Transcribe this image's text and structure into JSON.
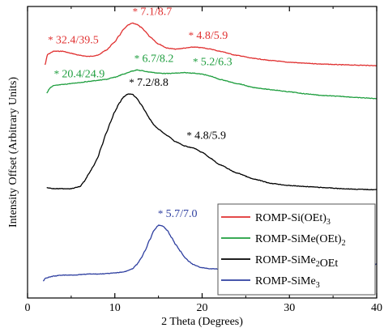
{
  "chart_data": {
    "type": "line",
    "xlabel": "2 Theta (Degrees)",
    "ylabel": "Intensity Offset (Arbitrary Units)",
    "xlim": [
      0,
      40
    ],
    "xticks": [
      "0",
      "10",
      "20",
      "30",
      "40"
    ],
    "y_tick_labels": false,
    "grid": false,
    "legend_position": "bottom-right",
    "series": [
      {
        "name": "ROMP-Si(OEt)₃",
        "color": "#e03030",
        "x": [
          2.0,
          2.3,
          3.0,
          4.0,
          5.0,
          6.0,
          7.0,
          8.0,
          9.0,
          10.0,
          10.5,
          11.0,
          11.5,
          12.0,
          12.5,
          13.0,
          13.5,
          14.0,
          15.0,
          16.0,
          17.0,
          18.0,
          19.0,
          20.0,
          21.0,
          22.0,
          24.0,
          26.0,
          28.0,
          30.0,
          32.0,
          34.0,
          36.0,
          38.0,
          40.0
        ],
        "y": [
          0.17,
          0.22,
          0.235,
          0.235,
          0.225,
          0.215,
          0.21,
          0.215,
          0.24,
          0.28,
          0.31,
          0.34,
          0.36,
          0.37,
          0.365,
          0.35,
          0.33,
          0.305,
          0.27,
          0.25,
          0.245,
          0.25,
          0.255,
          0.252,
          0.245,
          0.235,
          0.215,
          0.2,
          0.19,
          0.182,
          0.177,
          0.173,
          0.17,
          0.168,
          0.166
        ],
        "annotations": [
          {
            "label": "32.4/39.5",
            "x": 2.7,
            "y": 0.235
          },
          {
            "label": "7.1/8.7",
            "x": 12.4,
            "y": 0.37
          },
          {
            "label": "4.8/5.9",
            "x": 18.8,
            "y": 0.255
          }
        ]
      },
      {
        "name": "ROMP-SiMe(OEt)₂",
        "color": "#1e9e3e",
        "x": [
          2.2,
          2.6,
          3.0,
          4.0,
          5.0,
          6.0,
          7.0,
          8.0,
          9.0,
          10.0,
          11.0,
          12.0,
          12.5,
          13.0,
          14.0,
          15.0,
          16.0,
          17.0,
          18.0,
          19.0,
          20.0,
          21.0,
          22.0,
          24.0,
          26.0,
          28.0,
          30.0,
          32.0,
          34.0,
          36.0,
          38.0,
          40.0
        ],
        "y": [
          0.035,
          0.06,
          0.07,
          0.075,
          0.08,
          0.085,
          0.09,
          0.095,
          0.1,
          0.11,
          0.125,
          0.14,
          0.145,
          0.142,
          0.135,
          0.13,
          0.128,
          0.13,
          0.132,
          0.13,
          0.125,
          0.115,
          0.1,
          0.08,
          0.06,
          0.05,
          0.04,
          0.03,
          0.022,
          0.018,
          0.012,
          0.008
        ],
        "annotations": [
          {
            "label": "20.4/24.9",
            "x": 3.4,
            "y": 0.07
          },
          {
            "label": "6.7/8.2",
            "x": 12.6,
            "y": 0.145
          },
          {
            "label": "5.2/6.3",
            "x": 19.3,
            "y": 0.13
          }
        ]
      },
      {
        "name": "ROMP-SiMe₂OEt",
        "color": "#000000",
        "x": [
          2.2,
          3.0,
          4.0,
          5.0,
          6.0,
          6.5,
          7.0,
          7.5,
          8.0,
          8.5,
          9.0,
          9.5,
          10.0,
          10.5,
          11.0,
          11.5,
          12.0,
          12.5,
          13.0,
          13.5,
          14.0,
          14.5,
          15.0,
          16.0,
          17.0,
          18.0,
          18.5,
          19.0,
          20.0,
          21.0,
          22.0,
          24.0,
          26.0,
          28.0,
          30.0,
          32.0,
          34.0,
          36.0,
          38.0,
          40.0
        ],
        "y": [
          -0.42,
          -0.425,
          -0.425,
          -0.425,
          -0.415,
          -0.39,
          -0.355,
          -0.32,
          -0.28,
          -0.22,
          -0.16,
          -0.105,
          -0.055,
          -0.015,
          0.015,
          0.03,
          0.028,
          0.01,
          -0.02,
          -0.055,
          -0.09,
          -0.12,
          -0.14,
          -0.17,
          -0.2,
          -0.22,
          -0.225,
          -0.23,
          -0.25,
          -0.28,
          -0.31,
          -0.35,
          -0.38,
          -0.4,
          -0.41,
          -0.415,
          -0.42,
          -0.425,
          -0.428,
          -0.43
        ],
        "annotations": [
          {
            "label": "7.2/8.8",
            "x": 12.0,
            "y": 0.03
          },
          {
            "label": "4.8/5.9",
            "x": 18.6,
            "y": -0.225
          }
        ]
      },
      {
        "name": "ROMP-SiMe₃",
        "color": "#2e3fa0",
        "x": [
          1.8,
          2.0,
          3.0,
          4.0,
          5.0,
          6.0,
          7.0,
          8.0,
          9.0,
          10.0,
          11.0,
          12.0,
          12.5,
          13.0,
          13.5,
          14.0,
          14.5,
          15.0,
          15.5,
          16.0,
          16.5,
          17.0,
          17.5,
          18.0,
          18.5,
          19.0,
          20.0,
          21.0,
          22.0,
          23.0,
          24.0,
          26.0,
          28.0,
          30.0,
          32.0,
          34.0,
          36.0,
          38.0,
          40.0
        ],
        "y": [
          -0.87,
          -0.855,
          -0.845,
          -0.84,
          -0.84,
          -0.838,
          -0.835,
          -0.835,
          -0.833,
          -0.83,
          -0.825,
          -0.81,
          -0.79,
          -0.76,
          -0.72,
          -0.67,
          -0.625,
          -0.6,
          -0.605,
          -0.625,
          -0.66,
          -0.695,
          -0.725,
          -0.755,
          -0.775,
          -0.79,
          -0.805,
          -0.81,
          -0.81,
          -0.81,
          -0.808,
          -0.805,
          -0.803,
          -0.8,
          -0.798,
          -0.795,
          -0.792,
          -0.79,
          -0.788
        ],
        "annotations": [
          {
            "label": "5.7/7.0",
            "x": 15.3,
            "y": -0.6
          }
        ]
      }
    ]
  }
}
